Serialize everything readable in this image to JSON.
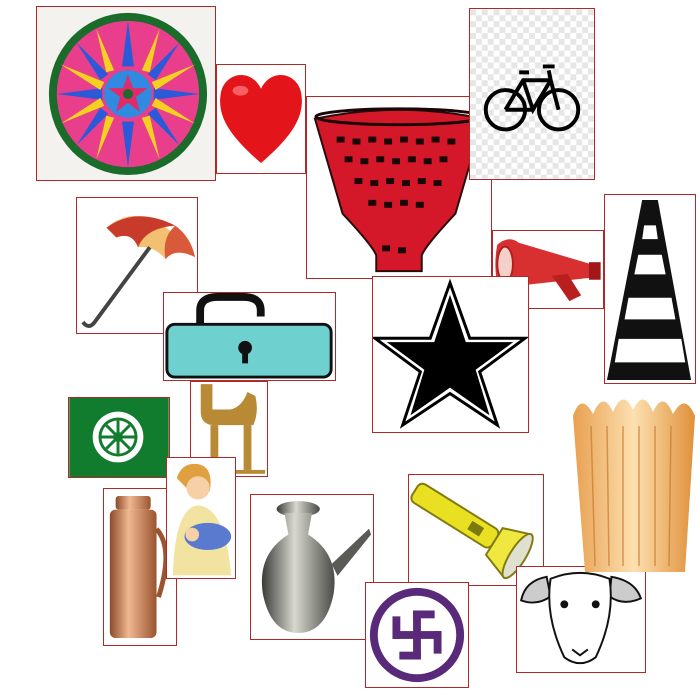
{
  "symbols": [
    {
      "icon": "rangoli-wheel-icon"
    },
    {
      "icon": "heart-icon"
    },
    {
      "icon": "bicycle-icon"
    },
    {
      "icon": "basket-icon"
    },
    {
      "icon": "umbrella-icon"
    },
    {
      "icon": "megaphone-icon"
    },
    {
      "icon": "ladder-icon"
    },
    {
      "icon": "padlock-icon"
    },
    {
      "icon": "star-icon"
    },
    {
      "icon": "chakra-flag-icon"
    },
    {
      "icon": "camel-icon"
    },
    {
      "icon": "jug-icon"
    },
    {
      "icon": "mother-with-baby-icon"
    },
    {
      "icon": "kettle-icon"
    },
    {
      "icon": "torch-icon"
    },
    {
      "icon": "swastika-icon"
    },
    {
      "icon": "goat-head-icon"
    },
    {
      "icon": "crown-basket-icon"
    }
  ],
  "colors": {
    "border": "#b02828",
    "heart": "#e4141b",
    "basket": "#d4182a",
    "lock": "#6fd0d0",
    "flag": "#127c2e",
    "camel": "#b88a35",
    "copper": "#c87a4a",
    "torch": "#e8e020",
    "swastika": "#5a2a7a",
    "megaphone": "#d83030"
  }
}
